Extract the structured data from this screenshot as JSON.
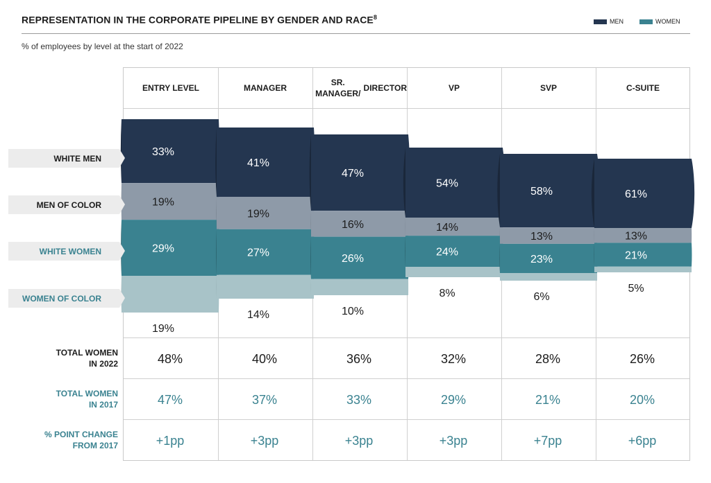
{
  "header": {
    "title": "REPRESENTATION IN THE CORPORATE PIPELINE BY GENDER AND RACE",
    "title_sup": "8",
    "subtitle": "% of employees by level at the start of 2022"
  },
  "legend": {
    "men_label": "MEN",
    "women_label": "WOMEN",
    "men_color": "#243650",
    "women_color": "#3a8290"
  },
  "chart_data": {
    "type": "bar",
    "stacked": true,
    "categories": [
      "ENTRY LEVEL",
      "MANAGER",
      "SR. MANAGER/ DIRECTOR",
      "VP",
      "SVP",
      "C-SUITE"
    ],
    "series": [
      {
        "name": "WHITE MEN",
        "values": [
          33,
          41,
          47,
          54,
          58,
          61
        ],
        "color": "#243650"
      },
      {
        "name": "MEN OF COLOR",
        "values": [
          19,
          19,
          16,
          14,
          13,
          13
        ],
        "color": "#8e9aa8"
      },
      {
        "name": "WHITE WOMEN",
        "values": [
          29,
          27,
          26,
          24,
          23,
          21
        ],
        "color": "#3a8290"
      },
      {
        "name": "WOMEN OF COLOR",
        "values": [
          19,
          14,
          10,
          8,
          6,
          5
        ],
        "color": "#a8c3c8"
      }
    ],
    "series_label_colors": [
      "#1c1c1c",
      "#1c1c1c",
      "#3a8290",
      "#3a8290"
    ]
  },
  "columns": [
    {
      "line1": "ENTRY LEVEL",
      "line2": ""
    },
    {
      "line1": "MANAGER",
      "line2": ""
    },
    {
      "line1": "SR. MANAGER/",
      "line2": "DIRECTOR"
    },
    {
      "line1": "VP",
      "line2": ""
    },
    {
      "line1": "SVP",
      "line2": ""
    },
    {
      "line1": "C-SUITE",
      "line2": ""
    }
  ],
  "totals": {
    "women_2022": {
      "label1": "TOTAL WOMEN",
      "label2": "IN 2022",
      "values": [
        "48%",
        "40%",
        "36%",
        "32%",
        "28%",
        "26%"
      ]
    },
    "women_2017": {
      "label1": "TOTAL WOMEN",
      "label2": "IN 2017",
      "values": [
        "47%",
        "37%",
        "33%",
        "29%",
        "21%",
        "20%"
      ]
    },
    "change": {
      "label1": "% POINT CHANGE",
      "label2": "FROM 2017",
      "values": [
        "+1pp",
        "+3pp",
        "+3pp",
        "+3pp",
        "+7pp",
        "+6pp"
      ]
    }
  }
}
